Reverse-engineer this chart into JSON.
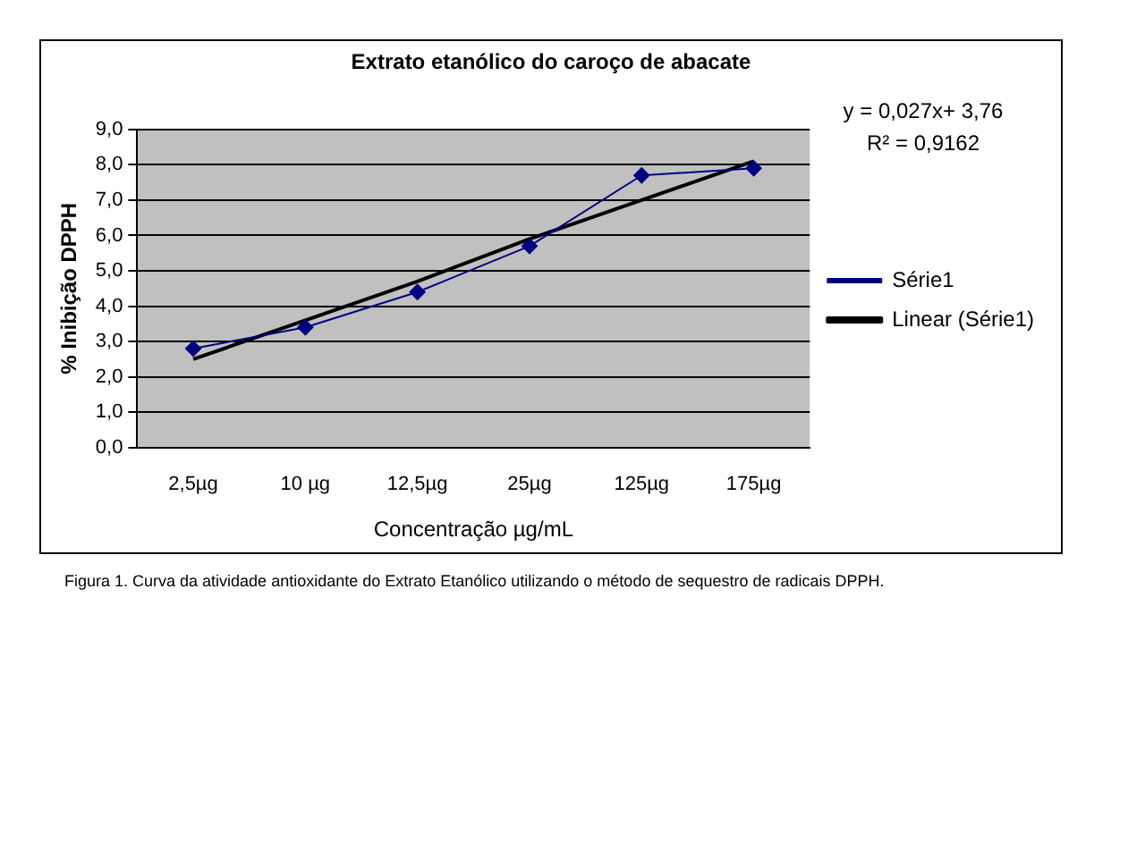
{
  "chart_data": {
    "type": "line",
    "title": "Extrato etanólico do caroço de abacate",
    "xlabel": "Concentração µg/mL",
    "ylabel": "% Inibição DPPH",
    "categories": [
      "2,5µg",
      "10 µg",
      "12,5µg",
      "25µg",
      "125µg",
      "175µg"
    ],
    "series": [
      {
        "name": "Série1",
        "color": "#000080",
        "marker": "diamond",
        "values": [
          2.8,
          3.4,
          4.4,
          5.7,
          7.7,
          7.9
        ]
      },
      {
        "name": "Linear (Série1)",
        "color": "#000000",
        "marker": "none",
        "values": [
          2.5,
          3.6,
          4.7,
          5.9,
          7.0,
          8.1
        ]
      }
    ],
    "ylim": [
      0,
      9
    ],
    "yticks": [
      {
        "value": 0,
        "label": "0,0"
      },
      {
        "value": 1,
        "label": "1,0"
      },
      {
        "value": 2,
        "label": "2,0"
      },
      {
        "value": 3,
        "label": "3,0"
      },
      {
        "value": 4,
        "label": "4,0"
      },
      {
        "value": 5,
        "label": "5,0"
      },
      {
        "value": 6,
        "label": "6,0"
      },
      {
        "value": 7,
        "label": "7,0"
      },
      {
        "value": 8,
        "label": "8,0"
      },
      {
        "value": 9,
        "label": "9,0"
      }
    ],
    "grid": "y",
    "legend": "right",
    "annotations": [
      "y = 0,027x+ 3,76",
      "R² = 0,9162",
      "Figura 1. Curva da atividade antioxidante do Extrato Etanólico utilizando o método de sequestro de radicais DPPH."
    ]
  }
}
